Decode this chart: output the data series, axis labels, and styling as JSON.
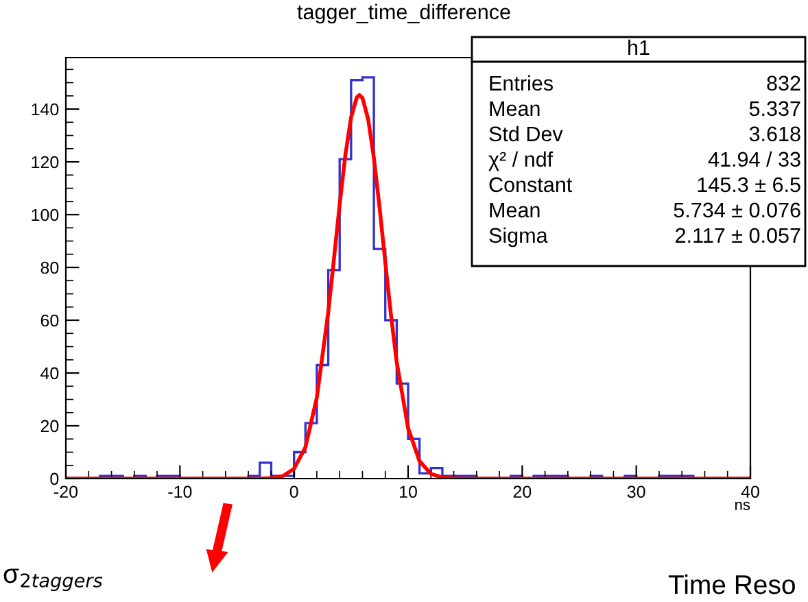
{
  "chart_data": {
    "type": "histogram",
    "title": "tagger_time_difference",
    "xlabel": "ns",
    "xlim": [
      -20,
      40
    ],
    "xticks": [
      -20,
      -10,
      0,
      10,
      20,
      30,
      40
    ],
    "ylim": [
      0,
      159.5
    ],
    "yticks": [
      0,
      20,
      40,
      60,
      80,
      100,
      120,
      140
    ],
    "grid": false,
    "legend": false,
    "series": [
      {
        "color": "#3333cc",
        "bins": [
          -20,
          -19,
          -18,
          -17,
          -16,
          -15,
          -14,
          -13,
          -12,
          -11,
          -10,
          -9,
          -8,
          -7,
          -6,
          -5,
          -4,
          -3,
          -2,
          -1,
          0,
          1,
          2,
          3,
          4,
          5,
          6,
          7,
          8,
          9,
          10,
          11,
          12,
          13,
          14,
          15,
          16,
          17,
          18,
          19,
          20,
          21,
          22,
          23,
          24,
          25,
          26,
          27,
          28,
          29,
          30,
          31,
          32,
          33,
          34,
          35,
          36,
          37,
          38,
          39,
          40
        ],
        "values": [
          0,
          0,
          0,
          1,
          1,
          0,
          1,
          0,
          1,
          1,
          0,
          0,
          0,
          0,
          0,
          0,
          1,
          6,
          1,
          1,
          10,
          21,
          43,
          79,
          121,
          151,
          152,
          87,
          60,
          36,
          15,
          2,
          4,
          1,
          1,
          1,
          0,
          0,
          0,
          1,
          0,
          1,
          1,
          1,
          0,
          0,
          1,
          0,
          0,
          1,
          0,
          0,
          1,
          1,
          1,
          0,
          0,
          0,
          0,
          0
        ]
      },
      {
        "type": "line",
        "color": "#ff0000",
        "x": [
          -20,
          -3,
          -2,
          -1,
          0,
          1,
          2,
          3,
          3.5,
          4,
          4.5,
          5,
          5.5,
          5.734,
          6,
          6.5,
          7,
          7.5,
          8,
          8.5,
          9,
          10,
          11,
          12,
          13,
          14,
          15,
          40
        ],
        "values": [
          0,
          0,
          0.2,
          0.9,
          3.7,
          11.9,
          30.7,
          63.1,
          83.2,
          103.9,
          122.6,
          136.8,
          144.4,
          145.3,
          144.2,
          136.1,
          121.5,
          102.6,
          81.9,
          61.9,
          44.2,
          19.1,
          6.6,
          1.8,
          0.4,
          0.1,
          0,
          0
        ]
      }
    ],
    "annotations": [
      "h1",
      "Entries",
      "832",
      "Mean",
      "5.337",
      "Std Dev",
      "3.618",
      "χ² / ndf",
      "41.94 / 33",
      "Constant",
      "145.3 ± 6.5",
      "Mean",
      "5.734 ± 0.076",
      "Sigma",
      "2.117 ± 0.057",
      "σ$_{2taggers}$",
      "Time Reso"
    ]
  }
}
